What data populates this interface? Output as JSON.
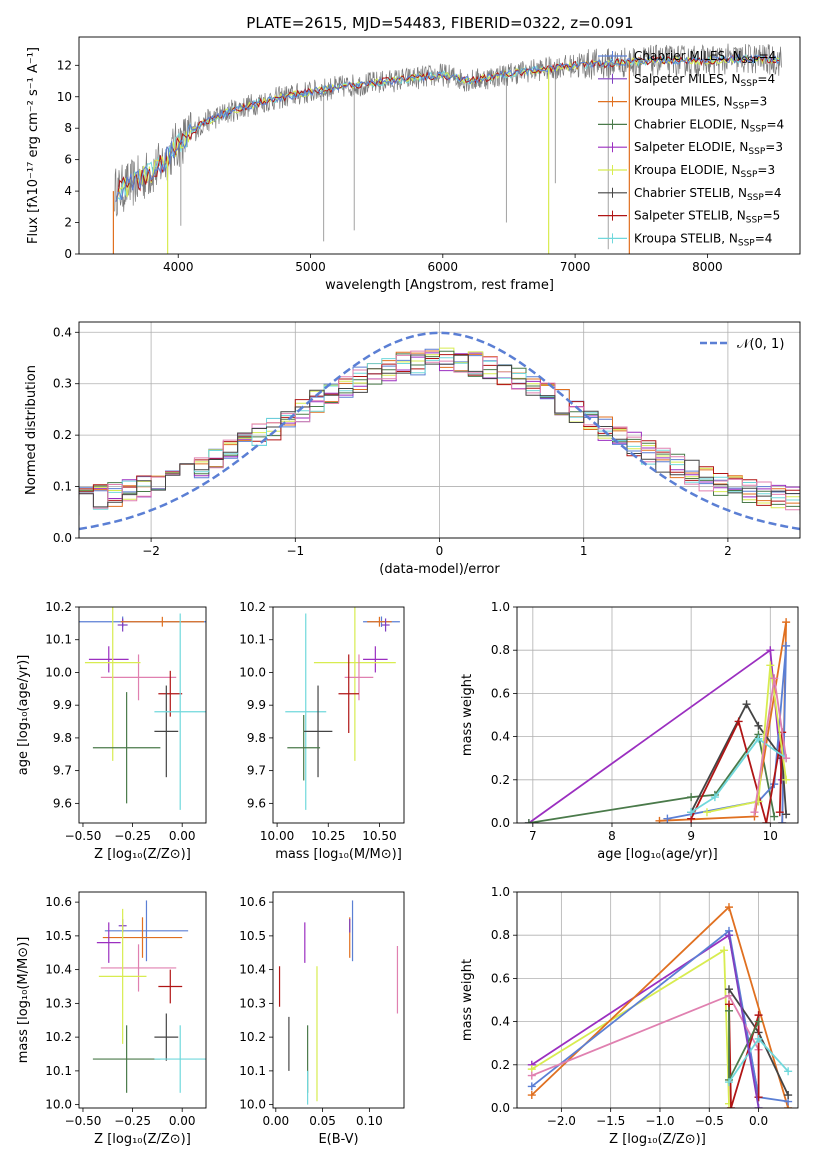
{
  "title": "PLATE=2615, MJD=54483, FIBERID=0322, z=0.091",
  "colors": {
    "Chabrier MILES": "#5b7fd4",
    "Salpeter MILES": "#7f3fc0",
    "Kroupa MILES": "#e07020",
    "Chabrier ELODIE": "#4a7a4a",
    "Salpeter ELODIE": "#9b2fc0",
    "Kroupa ELODIE": "#d8ec50",
    "Chabrier STELIB": "#444444",
    "Salpeter STELIB": "#b01515",
    "Kroupa STELIB": "#70d8dc",
    "extra": "#e080b0",
    "gaussian": "#5b7fd4",
    "data": "#7a7a7a"
  },
  "chart_data": [
    {
      "type": "line",
      "xlabel": "wavelength [Angstrom, rest frame]",
      "ylabel": "Flux [fλ10⁻¹⁷ erg cm⁻² s⁻¹ A⁻¹]",
      "xlim": [
        3250,
        8700
      ],
      "ylim": [
        0,
        13.8
      ],
      "xticks": [
        "4000",
        "5000",
        "6000",
        "7000",
        "8000"
      ],
      "yticks": [
        "0",
        "2",
        "4",
        "6",
        "8",
        "10",
        "12"
      ],
      "xtick_values": [
        4000,
        5000,
        6000,
        7000,
        8000
      ],
      "ytick_values": [
        0,
        2,
        4,
        6,
        8,
        10,
        12
      ],
      "legend_position": "top-right",
      "series": [
        {
          "name": "Chabrier MILES, N_SSP=4"
        },
        {
          "name": "Salpeter MILES, N_SSP=4"
        },
        {
          "name": "Kroupa MILES, N_SSP=3"
        },
        {
          "name": "Chabrier ELODIE, N_SSP=4"
        },
        {
          "name": "Salpeter ELODIE, N_SSP=3"
        },
        {
          "name": "Kroupa ELODIE, N_SSP=3"
        },
        {
          "name": "Chabrier STELIB, N_SSP=4"
        },
        {
          "name": "Salpeter STELIB, N_SSP=5"
        },
        {
          "name": "Kroupa STELIB, N_SSP=4"
        }
      ],
      "continuum": {
        "x": [
          3550,
          3700,
          3850,
          4000,
          4200,
          4400,
          4600,
          4800,
          5000,
          5200,
          5400,
          5600,
          5800,
          6000,
          6200,
          6400,
          6600,
          6800,
          7000,
          7200,
          7400,
          7600,
          7800,
          8000,
          8200,
          8400,
          8550
        ],
        "y": [
          4.0,
          4.7,
          5.5,
          7.0,
          8.4,
          9.1,
          9.6,
          10.0,
          10.3,
          10.6,
          10.8,
          11.0,
          11.2,
          11.4,
          11.0,
          11.3,
          11.6,
          11.8,
          12.0,
          12.1,
          12.2,
          12.3,
          12.3,
          12.3,
          12.4,
          12.4,
          12.3
        ]
      }
    },
    {
      "type": "line",
      "xlabel": "(data-model)/error",
      "ylabel": "Normed distribution",
      "xlim": [
        -2.5,
        2.5
      ],
      "ylim": [
        0,
        0.42
      ],
      "xticks": [
        "−2",
        "−1",
        "0",
        "1",
        "2"
      ],
      "yticks": [
        "0.0",
        "0.1",
        "0.2",
        "0.3",
        "0.4"
      ],
      "xtick_values": [
        -2,
        -1,
        0,
        1,
        2
      ],
      "ytick_values": [
        0,
        0.1,
        0.2,
        0.3,
        0.4
      ],
      "legend": "𝒩(0, 1)",
      "legend_position": "top-right",
      "grid": true
    },
    {
      "type": "scatter",
      "xlabel": "Z [log₁₀(Z/Z⊙)]",
      "ylabel": "age  [log₁₀(age/yr)]",
      "xlim": [
        -0.52,
        0.12
      ],
      "ylim": [
        9.54,
        10.2
      ],
      "xticks": [
        "−0.50",
        "−0.25",
        "0.00"
      ],
      "xtick_values": [
        -0.5,
        -0.25,
        0
      ],
      "yticks": [
        "9.6",
        "9.7",
        "9.8",
        "9.9",
        "10.0",
        "10.1",
        "10.2"
      ],
      "ytick_values": [
        9.6,
        9.7,
        9.8,
        9.9,
        10.0,
        10.1,
        10.2
      ],
      "points": [
        {
          "s": "Chabrier MILES",
          "x": -0.3,
          "y": 10.155,
          "xe": 0.43,
          "ye": 0.016
        },
        {
          "s": "Salpeter MILES",
          "x": -0.3,
          "y": 10.145,
          "xe": 0.025,
          "ye": 0.02
        },
        {
          "s": "Kroupa MILES",
          "x": -0.1,
          "y": 10.155,
          "xe": 0.21,
          "ye": 0.015
        },
        {
          "s": "extra",
          "x": -0.22,
          "y": 9.985,
          "xe": 0.19,
          "ye": 0.07
        },
        {
          "s": "Salpeter ELODIE",
          "x": -0.37,
          "y": 10.04,
          "xe": 0.1,
          "ye": 0.04
        },
        {
          "s": "Kroupa ELODIE",
          "x": -0.35,
          "y": 10.03,
          "xe": 0.14,
          "ye": 0.3
        },
        {
          "s": "Chabrier ELODIE",
          "x": -0.28,
          "y": 9.77,
          "xe": 0.17,
          "ye": 0.17
        },
        {
          "s": "Salpeter STELIB",
          "x": -0.06,
          "y": 9.935,
          "xe": 0.06,
          "ye": 0.07
        },
        {
          "s": "Chabrier STELIB",
          "x": -0.08,
          "y": 9.82,
          "xe": 0.06,
          "ye": 0.14
        },
        {
          "s": "Kroupa STELIB",
          "x": -0.01,
          "y": 9.88,
          "xe": 0.13,
          "ye": 0.3
        }
      ]
    },
    {
      "type": "scatter",
      "xlabel": "mass [log₁₀(M/M⊙)]",
      "ylabel": "",
      "xlim": [
        9.98,
        10.62
      ],
      "ylim": [
        9.54,
        10.2
      ],
      "xticks": [
        "10.00",
        "10.25",
        "10.50"
      ],
      "xtick_values": [
        10.0,
        10.25,
        10.5
      ],
      "yticks": [
        "9.6",
        "9.7",
        "9.8",
        "9.9",
        "10.0",
        "10.1",
        "10.2"
      ],
      "ytick_values": [
        9.6,
        9.7,
        9.8,
        9.9,
        10.0,
        10.1,
        10.2
      ],
      "points": [
        {
          "s": "Chabrier MILES",
          "x": 10.51,
          "y": 10.155,
          "xe": 0.09,
          "ye": 0.016
        },
        {
          "s": "Kroupa MILES",
          "x": 10.5,
          "y": 10.155,
          "xe": 0.06,
          "ye": 0.015
        },
        {
          "s": "Salpeter MILES",
          "x": 10.53,
          "y": 10.145,
          "xe": 0.02,
          "ye": 0.02
        },
        {
          "s": "Salpeter ELODIE",
          "x": 10.48,
          "y": 10.04,
          "xe": 0.06,
          "ye": 0.04
        },
        {
          "s": "Kroupa ELODIE",
          "x": 10.38,
          "y": 10.03,
          "xe": 0.2,
          "ye": 0.3
        },
        {
          "s": "extra",
          "x": 10.4,
          "y": 9.985,
          "xe": 0.07,
          "ye": 0.07
        },
        {
          "s": "Salpeter STELIB",
          "x": 10.35,
          "y": 9.935,
          "xe": 0.05,
          "ye": 0.12
        },
        {
          "s": "Kroupa STELIB",
          "x": 10.14,
          "y": 9.88,
          "xe": 0.1,
          "ye": 0.3
        },
        {
          "s": "Chabrier STELIB",
          "x": 10.2,
          "y": 9.82,
          "xe": 0.07,
          "ye": 0.14
        },
        {
          "s": "Chabrier ELODIE",
          "x": 10.13,
          "y": 9.77,
          "xe": 0.08,
          "ye": 0.1
        }
      ]
    },
    {
      "type": "line",
      "xlabel": "age  [log₁₀(age/yr)]",
      "ylabel": "mass weight",
      "xlim": [
        6.8,
        10.35
      ],
      "ylim": [
        0,
        1
      ],
      "xticks": [
        "7",
        "8",
        "9",
        "10"
      ],
      "xtick_values": [
        7,
        8,
        9,
        10
      ],
      "yticks": [
        "0.0",
        "0.2",
        "0.4",
        "0.6",
        "0.8",
        "1.0"
      ],
      "ytick_values": [
        0,
        0.2,
        0.4,
        0.6,
        0.8,
        1.0
      ],
      "grid": true,
      "series": [
        {
          "s": "Salpeter ELODIE",
          "x": [
            6.95,
            10.0,
            10.15
          ],
          "y": [
            0.0,
            0.8,
            0.2
          ]
        },
        {
          "s": "Chabrier ELODIE",
          "x": [
            6.95,
            9.0,
            9.3,
            9.85,
            10.05
          ],
          "y": [
            0.0,
            0.12,
            0.13,
            0.41,
            0.03
          ]
        },
        {
          "s": "Kroupa MILES",
          "x": [
            8.6,
            9.8,
            10.2,
            10.15
          ],
          "y": [
            0.01,
            0.03,
            0.93,
            0.0
          ]
        },
        {
          "s": "Chabrier MILES",
          "x": [
            8.7,
            9.85,
            10.05,
            10.2,
            10.15
          ],
          "y": [
            0.02,
            0.1,
            0.18,
            0.82,
            0.0
          ]
        },
        {
          "s": "Chabrier STELIB",
          "x": [
            9.0,
            9.7,
            9.85,
            10.15,
            10.2
          ],
          "y": [
            0.05,
            0.55,
            0.45,
            0.3,
            0.04
          ]
        },
        {
          "s": "Salpeter STELIB",
          "x": [
            9.0,
            9.6,
            9.95,
            10.15,
            10.12
          ],
          "y": [
            0.02,
            0.47,
            0.0,
            0.42,
            0.05
          ]
        },
        {
          "s": "Kroupa ELODIE",
          "x": [
            9.2,
            9.85,
            10.0,
            10.2
          ],
          "y": [
            0.05,
            0.1,
            0.73,
            0.2
          ]
        },
        {
          "s": "Kroupa STELIB",
          "x": [
            9.0,
            9.3,
            9.85,
            10.2
          ],
          "y": [
            0.05,
            0.12,
            0.39,
            0.3
          ]
        },
        {
          "s": "extra",
          "x": [
            9.8,
            10.05,
            10.2
          ],
          "y": [
            0.05,
            0.67,
            0.3
          ]
        }
      ]
    },
    {
      "type": "scatter",
      "xlabel": "Z [log₁₀(Z/Z⊙)]",
      "ylabel": "mass [log₁₀(M/M⊙)]",
      "xlim": [
        -0.52,
        0.12
      ],
      "ylim": [
        9.99,
        10.63
      ],
      "xticks": [
        "−0.50",
        "−0.25",
        "0.00"
      ],
      "xtick_values": [
        -0.5,
        -0.25,
        0
      ],
      "yticks": [
        "10.0",
        "10.1",
        "10.2",
        "10.3",
        "10.4",
        "10.5",
        "10.6"
      ],
      "ytick_values": [
        10.0,
        10.1,
        10.2,
        10.3,
        10.4,
        10.5,
        10.6
      ],
      "points": [
        {
          "s": "Chabrier MILES",
          "x": -0.18,
          "y": 10.515,
          "xe": 0.21,
          "ye": 0.09
        },
        {
          "s": "Salpeter MILES",
          "x": -0.3,
          "y": 10.53,
          "xe": 0.02,
          "ye": 0.02
        },
        {
          "s": "Kroupa MILES",
          "x": -0.2,
          "y": 10.495,
          "xe": 0.2,
          "ye": 0.06
        },
        {
          "s": "Salpeter ELODIE",
          "x": -0.37,
          "y": 10.48,
          "xe": 0.06,
          "ye": 0.06
        },
        {
          "s": "extra",
          "x": -0.22,
          "y": 10.405,
          "xe": 0.19,
          "ye": 0.07
        },
        {
          "s": "Kroupa ELODIE",
          "x": -0.3,
          "y": 10.38,
          "xe": 0.12,
          "ye": 0.2
        },
        {
          "s": "Salpeter STELIB",
          "x": -0.06,
          "y": 10.35,
          "xe": 0.06,
          "ye": 0.05
        },
        {
          "s": "Chabrier STELIB",
          "x": -0.08,
          "y": 10.2,
          "xe": 0.06,
          "ye": 0.07
        },
        {
          "s": "Chabrier ELODIE",
          "x": -0.28,
          "y": 10.135,
          "xe": 0.17,
          "ye": 0.1
        },
        {
          "s": "Kroupa STELIB",
          "x": -0.01,
          "y": 10.135,
          "xe": 0.13,
          "ye": 0.1
        }
      ]
    },
    {
      "type": "scatter",
      "xlabel": "E(B-V)",
      "ylabel": "",
      "xlim": [
        -0.003,
        0.137
      ],
      "ylim": [
        9.99,
        10.63
      ],
      "xticks": [
        "0.00",
        "0.05",
        "0.10"
      ],
      "xtick_values": [
        0,
        0.05,
        0.1
      ],
      "yticks": [
        "10.0",
        "10.1",
        "10.2",
        "10.3",
        "10.4",
        "10.5",
        "10.6"
      ],
      "ytick_values": [
        10.0,
        10.1,
        10.2,
        10.3,
        10.4,
        10.5,
        10.6
      ],
      "points": [
        {
          "s": "Chabrier MILES",
          "x": 0.082,
          "y": 10.515,
          "xe": 0,
          "ye": 0.09
        },
        {
          "s": "Salpeter ELODIE",
          "x": 0.031,
          "y": 10.48,
          "xe": 0,
          "ye": 0.06
        },
        {
          "s": "Kroupa MILES",
          "x": 0.079,
          "y": 10.495,
          "xe": 0,
          "ye": 0.06
        },
        {
          "s": "Salpeter MILES",
          "x": 0.079,
          "y": 10.53,
          "xe": 0,
          "ye": 0.02
        },
        {
          "s": "extra",
          "x": 0.13,
          "y": 10.37,
          "xe": 0,
          "ye": 0.1
        },
        {
          "s": "Salpeter STELIB",
          "x": 0.004,
          "y": 10.35,
          "xe": 0,
          "ye": 0.06
        },
        {
          "s": "Kroupa ELODIE",
          "x": 0.044,
          "y": 10.21,
          "xe": 0,
          "ye": 0.2
        },
        {
          "s": "Chabrier STELIB",
          "x": 0.014,
          "y": 10.18,
          "xe": 0,
          "ye": 0.08
        },
        {
          "s": "Chabrier ELODIE",
          "x": 0.034,
          "y": 10.135,
          "xe": 0,
          "ye": 0.1
        },
        {
          "s": "Kroupa STELIB",
          "x": 0.034,
          "y": 10.05,
          "xe": 0,
          "ye": 0.05
        }
      ]
    },
    {
      "type": "line",
      "xlabel": "Z [log₁₀(Z/Z⊙)]",
      "ylabel": "mass weight",
      "xlim": [
        -2.45,
        0.4
      ],
      "ylim": [
        0,
        1
      ],
      "xticks": [
        "−2.0",
        "−1.5",
        "−1.0",
        "−0.5",
        "0.0"
      ],
      "xtick_values": [
        -2,
        -1.5,
        -1,
        -0.5,
        0
      ],
      "yticks": [
        "0.0",
        "0.2",
        "0.4",
        "0.6",
        "0.8",
        "1.0"
      ],
      "ytick_values": [
        0,
        0.2,
        0.4,
        0.6,
        0.8,
        1.0
      ],
      "grid": true,
      "series": [
        {
          "s": "Salpeter ELODIE",
          "x": [
            -2.3,
            -0.3,
            0.0
          ],
          "y": [
            0.2,
            0.8,
            0.05
          ]
        },
        {
          "s": "Kroupa ELODIE",
          "x": [
            -2.3,
            -0.35,
            -0.3
          ],
          "y": [
            0.18,
            0.73,
            0.02
          ]
        },
        {
          "s": "Kroupa MILES",
          "x": [
            -2.3,
            -0.3,
            0.3
          ],
          "y": [
            0.06,
            0.93,
            0.0
          ]
        },
        {
          "s": "Chabrier MILES",
          "x": [
            -2.3,
            -0.3,
            0.0,
            0.3
          ],
          "y": [
            0.1,
            0.82,
            0.05,
            0.03
          ]
        },
        {
          "s": "extra",
          "x": [
            -2.3,
            -0.3,
            0.0
          ],
          "y": [
            0.15,
            0.52,
            0.27
          ]
        },
        {
          "s": "Chabrier STELIB",
          "x": [
            -0.3,
            0.0,
            0.3
          ],
          "y": [
            0.55,
            0.35,
            0.06
          ]
        },
        {
          "s": "Salpeter STELIB",
          "x": [
            -0.3,
            -0.28,
            0.0,
            0.0
          ],
          "y": [
            0.48,
            0.0,
            0.43,
            0.05
          ]
        },
        {
          "s": "Chabrier ELODIE",
          "x": [
            -0.3,
            -0.3,
            0.0
          ],
          "y": [
            0.45,
            0.13,
            0.4
          ]
        },
        {
          "s": "Kroupa STELIB",
          "x": [
            -0.3,
            0.0,
            0.3
          ],
          "y": [
            0.12,
            0.32,
            0.17
          ]
        },
        {
          "s": "Salpeter MILES",
          "x": [
            -0.3,
            0.0
          ],
          "y": [
            0.8,
            0.0
          ]
        }
      ]
    }
  ]
}
